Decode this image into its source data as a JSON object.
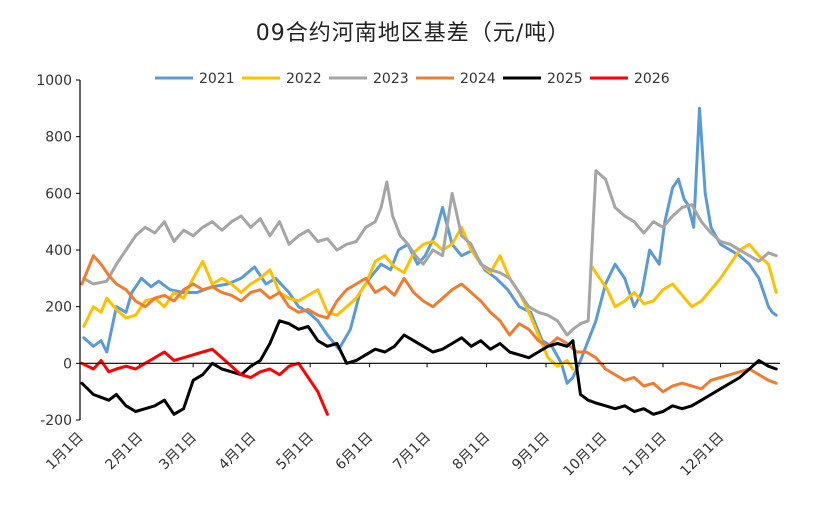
{
  "chart_data": {
    "type": "line",
    "title": "09合约河南地区基差（元/吨）",
    "xlabel": "",
    "ylabel": "",
    "ylim": [
      -200,
      1000
    ],
    "yticks": [
      -200,
      0,
      200,
      400,
      600,
      800,
      1000
    ],
    "x_unit": "day_of_year",
    "xlim": [
      1,
      366
    ],
    "xticks": [
      {
        "label": "1月1日",
        "day": 1
      },
      {
        "label": "2月1日",
        "day": 32
      },
      {
        "label": "3月1日",
        "day": 60
      },
      {
        "label": "4月1日",
        "day": 91
      },
      {
        "label": "5月1日",
        "day": 121
      },
      {
        "label": "6月1日",
        "day": 152
      },
      {
        "label": "7月1日",
        "day": 182
      },
      {
        "label": "8月1日",
        "day": 213
      },
      {
        "label": "9月1日",
        "day": 244
      },
      {
        "label": "10月1日",
        "day": 274
      },
      {
        "label": "11月1日",
        "day": 305
      },
      {
        "label": "12月1日",
        "day": 335
      }
    ],
    "grid": false,
    "legend_position": "top",
    "series": [
      {
        "name": "2021",
        "color": "#5B9BD5",
        "x": [
          3,
          8,
          12,
          15,
          20,
          25,
          28,
          33,
          38,
          42,
          48,
          55,
          62,
          70,
          78,
          85,
          92,
          98,
          103,
          110,
          115,
          120,
          125,
          130,
          136,
          142,
          147,
          152,
          158,
          163,
          167,
          172,
          177,
          181,
          186,
          190,
          195,
          200,
          206,
          212,
          218,
          224,
          230,
          236,
          242,
          247,
          252,
          255,
          258,
          262,
          266,
          270,
          275,
          280,
          285,
          290,
          294,
          298,
          300,
          303,
          306,
          310,
          313,
          316,
          318,
          321,
          324,
          327,
          330,
          335,
          340,
          345,
          350,
          355,
          360,
          362,
          364
        ],
        "y": [
          90,
          60,
          80,
          40,
          200,
          180,
          250,
          300,
          270,
          290,
          260,
          250,
          250,
          270,
          280,
          300,
          340,
          280,
          300,
          250,
          200,
          180,
          150,
          100,
          50,
          120,
          250,
          300,
          350,
          330,
          400,
          420,
          350,
          380,
          450,
          550,
          420,
          380,
          400,
          330,
          300,
          260,
          200,
          180,
          80,
          60,
          0,
          -70,
          -50,
          10,
          80,
          150,
          280,
          350,
          300,
          200,
          250,
          400,
          380,
          350,
          500,
          620,
          650,
          580,
          560,
          480,
          900,
          600,
          480,
          420,
          400,
          380,
          350,
          300,
          200,
          180,
          170
        ]
      },
      {
        "name": "2022",
        "color": "#FFC000",
        "x": [
          3,
          8,
          12,
          15,
          20,
          25,
          30,
          35,
          40,
          45,
          50,
          55,
          60,
          65,
          70,
          75,
          80,
          85,
          90,
          95,
          100,
          105,
          110,
          115,
          120,
          125,
          130,
          135,
          140,
          145,
          150,
          155,
          160,
          165,
          170,
          175,
          180,
          185,
          190,
          195,
          200,
          205,
          210,
          215,
          220,
          225,
          230,
          235,
          240,
          245,
          250,
          255,
          258
        ],
        "y": [
          130,
          200,
          180,
          230,
          190,
          160,
          170,
          220,
          230,
          200,
          250,
          230,
          300,
          360,
          280,
          300,
          280,
          250,
          280,
          300,
          330,
          250,
          230,
          220,
          240,
          260,
          180,
          170,
          200,
          230,
          280,
          360,
          380,
          340,
          320,
          390,
          420,
          430,
          400,
          420,
          480,
          400,
          350,
          320,
          380,
          300,
          250,
          180,
          100,
          20,
          -10,
          10,
          -20
        ],
        "x2": [
          268,
          272,
          276,
          280,
          285,
          290,
          295,
          300,
          305,
          310,
          315,
          320,
          325,
          330,
          335,
          340,
          345,
          350,
          355,
          360,
          364
        ],
        "y2": [
          340,
          300,
          260,
          200,
          220,
          250,
          210,
          220,
          260,
          280,
          240,
          200,
          220,
          260,
          300,
          350,
          400,
          420,
          380,
          350,
          250
        ]
      },
      {
        "name": "2023",
        "color": "#A5A5A5",
        "x": [
          3,
          8,
          15,
          20,
          25,
          30,
          35,
          40,
          45,
          50,
          55,
          60,
          65,
          70,
          75,
          80,
          85,
          90,
          95,
          100,
          105,
          110,
          115,
          120,
          125,
          130,
          135,
          140,
          145,
          150,
          155,
          158,
          161,
          164,
          168,
          172,
          176,
          180,
          185,
          190,
          195,
          200,
          205,
          210,
          215,
          220,
          225,
          230,
          235,
          240,
          245,
          250,
          255,
          258,
          262,
          266,
          270,
          275,
          280,
          285,
          290,
          295,
          300,
          305,
          310,
          315,
          320,
          325,
          330,
          335,
          340,
          345,
          350,
          355,
          360,
          364
        ],
        "y": [
          300,
          280,
          290,
          350,
          400,
          450,
          480,
          460,
          500,
          430,
          470,
          450,
          480,
          500,
          470,
          500,
          520,
          480,
          510,
          450,
          500,
          420,
          450,
          470,
          430,
          440,
          400,
          420,
          430,
          480,
          500,
          550,
          640,
          520,
          450,
          420,
          380,
          350,
          400,
          380,
          600,
          450,
          420,
          350,
          330,
          320,
          300,
          250,
          200,
          180,
          170,
          150,
          100,
          120,
          140,
          150,
          680,
          650,
          550,
          520,
          500,
          460,
          500,
          480,
          520,
          550,
          560,
          500,
          460,
          430,
          420,
          400,
          380,
          360,
          390,
          380
        ]
      },
      {
        "name": "2024",
        "color": "#ED7D31",
        "x": [
          2,
          5,
          8,
          12,
          16,
          20,
          25,
          30,
          35,
          40,
          45,
          50,
          55,
          60,
          65,
          70,
          75,
          80,
          85,
          90,
          95,
          100,
          105,
          110,
          115,
          120,
          125,
          130,
          135,
          140,
          145,
          150,
          155,
          160,
          165,
          170,
          175,
          180,
          185,
          190,
          195,
          200,
          205,
          210,
          215,
          220,
          225,
          230,
          235,
          240,
          245,
          250,
          255,
          260,
          265,
          270,
          275,
          280,
          285,
          290,
          295,
          300,
          305,
          310,
          315,
          320,
          325,
          330,
          335,
          340,
          345,
          350,
          355,
          360,
          364
        ],
        "y": [
          280,
          330,
          380,
          350,
          310,
          280,
          260,
          220,
          200,
          230,
          240,
          220,
          260,
          280,
          260,
          270,
          250,
          240,
          220,
          250,
          260,
          230,
          250,
          200,
          180,
          190,
          170,
          160,
          220,
          260,
          280,
          300,
          250,
          270,
          240,
          300,
          250,
          220,
          200,
          230,
          260,
          280,
          250,
          220,
          180,
          150,
          100,
          140,
          120,
          80,
          60,
          90,
          70,
          40,
          40,
          20,
          -20,
          -40,
          -60,
          -50,
          -80,
          -70,
          -100,
          -80,
          -70,
          -80,
          -90,
          -60,
          -50,
          -40,
          -30,
          -20,
          -40,
          -60,
          -70
        ]
      },
      {
        "name": "2025",
        "color": "#000000",
        "x": [
          2,
          5,
          8,
          12,
          16,
          20,
          25,
          30,
          35,
          40,
          45,
          50,
          55,
          60,
          65,
          70,
          75,
          80,
          85,
          90,
          95,
          100,
          105,
          110,
          115,
          120,
          125,
          130,
          135,
          140,
          145,
          150,
          155,
          160,
          165,
          170,
          175,
          180,
          185,
          190,
          195,
          200,
          205,
          210,
          215,
          220,
          225,
          230,
          235,
          240,
          245,
          250,
          255,
          258,
          262,
          266,
          270,
          275,
          280,
          285,
          290,
          295,
          300,
          305,
          310,
          315,
          320,
          325,
          330,
          335,
          340,
          345,
          350,
          355,
          360,
          364
        ],
        "y": [
          -70,
          -90,
          -110,
          -120,
          -130,
          -110,
          -150,
          -170,
          -160,
          -150,
          -130,
          -180,
          -160,
          -60,
          -40,
          0,
          -20,
          -30,
          -40,
          -10,
          10,
          70,
          150,
          140,
          120,
          130,
          80,
          60,
          70,
          0,
          10,
          30,
          50,
          40,
          60,
          100,
          80,
          60,
          40,
          50,
          70,
          90,
          60,
          80,
          50,
          70,
          40,
          30,
          20,
          40,
          60,
          70,
          60,
          80,
          -110,
          -130,
          -140,
          -150,
          -160,
          -150,
          -170,
          -160,
          -180,
          -170,
          -150,
          -160,
          -150,
          -130,
          -110,
          -90,
          -70,
          -50,
          -20,
          10,
          -10,
          -20
        ]
      },
      {
        "name": "2026",
        "color": "#FF0000",
        "x": [
          2,
          5,
          8,
          12,
          16,
          20,
          25,
          30,
          35,
          40,
          45,
          50,
          55,
          60,
          65,
          70,
          75,
          80,
          85,
          90,
          95,
          100,
          105,
          110,
          115,
          120,
          125,
          130
        ],
        "y": [
          0,
          -10,
          -20,
          10,
          -30,
          -20,
          -10,
          -20,
          0,
          20,
          40,
          10,
          20,
          30,
          40,
          50,
          20,
          -10,
          -40,
          -50,
          -30,
          -20,
          -40,
          -10,
          0,
          -50,
          -100,
          -180
        ]
      }
    ]
  }
}
